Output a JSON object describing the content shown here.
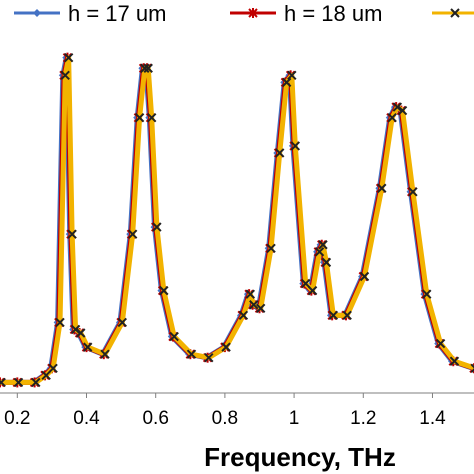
{
  "chart_data": {
    "type": "line",
    "xlabel": "Frequency, THz",
    "ylabel": "",
    "xlim": [
      0.15,
      1.52
    ],
    "ylim": [
      0.0,
      1.0
    ],
    "xticks": [
      "0.2",
      "0.4",
      "0.6",
      "0.8",
      "1",
      "1.2",
      "1.4"
    ],
    "xtick_values": [
      0.2,
      0.4,
      0.6,
      0.8,
      1.0,
      1.2,
      1.4
    ],
    "grid": false,
    "legend_position": "top",
    "series": [
      {
        "name": "h = 17 um",
        "color": "#4472c4",
        "marker": "diamond",
        "x": [
          0.15,
          0.2,
          0.25,
          0.28,
          0.3,
          0.32,
          0.335,
          0.345,
          0.355,
          0.365,
          0.38,
          0.4,
          0.45,
          0.5,
          0.53,
          0.55,
          0.565,
          0.575,
          0.585,
          0.6,
          0.62,
          0.65,
          0.7,
          0.75,
          0.8,
          0.85,
          0.87,
          0.88,
          0.9,
          0.93,
          0.955,
          0.975,
          0.99,
          1.0,
          1.03,
          1.05,
          1.07,
          1.08,
          1.09,
          1.11,
          1.15,
          1.2,
          1.25,
          1.28,
          1.295,
          1.31,
          1.34,
          1.38,
          1.42,
          1.46,
          1.52
        ],
        "y": [
          0.03,
          0.03,
          0.03,
          0.05,
          0.07,
          0.2,
          0.9,
          0.95,
          0.45,
          0.18,
          0.17,
          0.13,
          0.11,
          0.2,
          0.45,
          0.78,
          0.92,
          0.92,
          0.78,
          0.47,
          0.29,
          0.16,
          0.11,
          0.1,
          0.13,
          0.22,
          0.28,
          0.25,
          0.24,
          0.41,
          0.68,
          0.88,
          0.9,
          0.7,
          0.31,
          0.29,
          0.4,
          0.42,
          0.37,
          0.22,
          0.22,
          0.33,
          0.58,
          0.78,
          0.81,
          0.8,
          0.57,
          0.28,
          0.14,
          0.09,
          0.07
        ]
      },
      {
        "name": "h = 18 um",
        "color": "#c00000",
        "marker": "asterisk",
        "x": [
          0.15,
          0.2,
          0.25,
          0.28,
          0.3,
          0.32,
          0.335,
          0.345,
          0.355,
          0.365,
          0.38,
          0.4,
          0.45,
          0.5,
          0.53,
          0.55,
          0.565,
          0.575,
          0.585,
          0.6,
          0.62,
          0.65,
          0.7,
          0.75,
          0.8,
          0.85,
          0.87,
          0.88,
          0.9,
          0.93,
          0.955,
          0.975,
          0.99,
          1.0,
          1.03,
          1.05,
          1.07,
          1.08,
          1.09,
          1.11,
          1.15,
          1.2,
          1.25,
          1.28,
          1.295,
          1.31,
          1.34,
          1.38,
          1.42,
          1.46,
          1.52
        ],
        "y": [
          0.03,
          0.03,
          0.03,
          0.05,
          0.07,
          0.2,
          0.9,
          0.95,
          0.45,
          0.18,
          0.17,
          0.13,
          0.11,
          0.2,
          0.45,
          0.78,
          0.92,
          0.92,
          0.78,
          0.47,
          0.29,
          0.16,
          0.11,
          0.1,
          0.13,
          0.22,
          0.28,
          0.25,
          0.24,
          0.41,
          0.68,
          0.88,
          0.9,
          0.7,
          0.31,
          0.29,
          0.4,
          0.42,
          0.37,
          0.22,
          0.22,
          0.33,
          0.58,
          0.78,
          0.81,
          0.8,
          0.57,
          0.28,
          0.14,
          0.09,
          0.07
        ]
      },
      {
        "name": "",
        "color": "#f2b300",
        "marker": "x",
        "x": [
          0.15,
          0.2,
          0.25,
          0.28,
          0.3,
          0.32,
          0.335,
          0.345,
          0.355,
          0.365,
          0.38,
          0.4,
          0.45,
          0.5,
          0.53,
          0.55,
          0.565,
          0.575,
          0.585,
          0.6,
          0.62,
          0.65,
          0.7,
          0.75,
          0.8,
          0.85,
          0.87,
          0.88,
          0.9,
          0.93,
          0.955,
          0.975,
          0.99,
          1.0,
          1.03,
          1.05,
          1.07,
          1.08,
          1.09,
          1.11,
          1.15,
          1.2,
          1.25,
          1.28,
          1.295,
          1.31,
          1.34,
          1.38,
          1.42,
          1.46,
          1.52
        ],
        "y": [
          0.03,
          0.03,
          0.03,
          0.05,
          0.07,
          0.2,
          0.9,
          0.95,
          0.45,
          0.18,
          0.17,
          0.13,
          0.11,
          0.2,
          0.45,
          0.78,
          0.92,
          0.92,
          0.78,
          0.47,
          0.29,
          0.16,
          0.11,
          0.1,
          0.13,
          0.22,
          0.28,
          0.25,
          0.24,
          0.41,
          0.68,
          0.88,
          0.9,
          0.7,
          0.31,
          0.29,
          0.4,
          0.42,
          0.37,
          0.22,
          0.22,
          0.33,
          0.58,
          0.78,
          0.81,
          0.8,
          0.57,
          0.28,
          0.14,
          0.09,
          0.07
        ]
      }
    ]
  }
}
